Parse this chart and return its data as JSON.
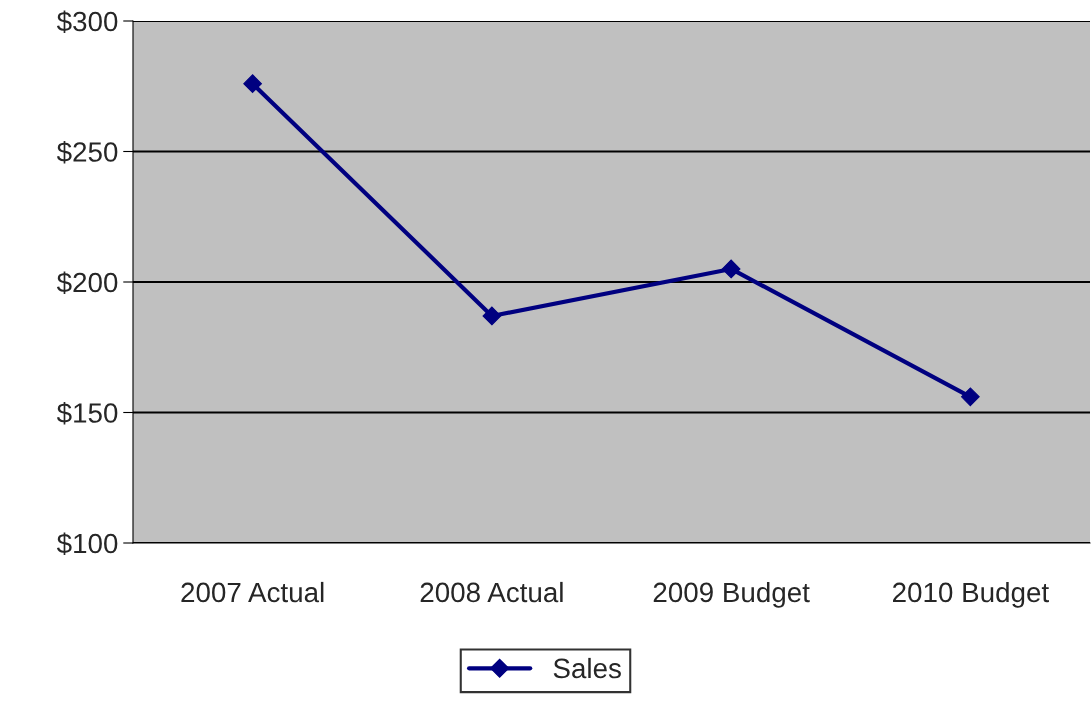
{
  "chart_data": {
    "type": "line",
    "categories": [
      "2007 Actual",
      "2008 Actual",
      "2009 Budget",
      "2010 Budget"
    ],
    "series": [
      {
        "name": "Sales",
        "color": "#000080",
        "values": [
          276,
          187,
          205,
          156
        ]
      }
    ],
    "ylim": [
      100,
      300
    ],
    "yticks": [
      {
        "value": 100,
        "label": "$100"
      },
      {
        "value": 150,
        "label": "$150"
      },
      {
        "value": 200,
        "label": "$200"
      },
      {
        "value": 250,
        "label": "$250"
      },
      {
        "value": 300,
        "label": "$300"
      }
    ],
    "grid": "y",
    "legend": "bottom",
    "marker": "diamond",
    "line_style": "solid"
  }
}
